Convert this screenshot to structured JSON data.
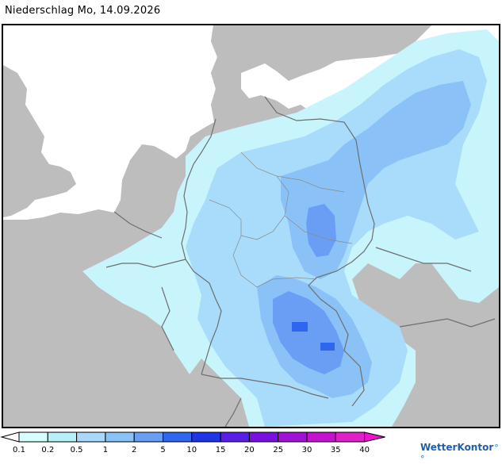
{
  "title": "Niederschlag Mo, 14.09.2026",
  "legend": {
    "ticks": [
      "0.1",
      "0.2",
      "0.5",
      "1",
      "2",
      "5",
      "10",
      "15",
      "20",
      "25",
      "30",
      "35",
      "40"
    ],
    "colors": [
      "#ffffff",
      "#d8ffff",
      "#b8f0fa",
      "#a8d8fa",
      "#8ac2f8",
      "#6a9ef5",
      "#2f66f0",
      "#1f35e8",
      "#5a1fe6",
      "#7a10e0",
      "#a010d8",
      "#c810d0",
      "#e020c8",
      "#f010d0"
    ]
  },
  "brand": {
    "name": "WetterKontor",
    "mark": "°°"
  },
  "map_colors": {
    "sea": "#ffffff",
    "land": "#bdbdbd",
    "border": "#6e6e6e"
  }
}
